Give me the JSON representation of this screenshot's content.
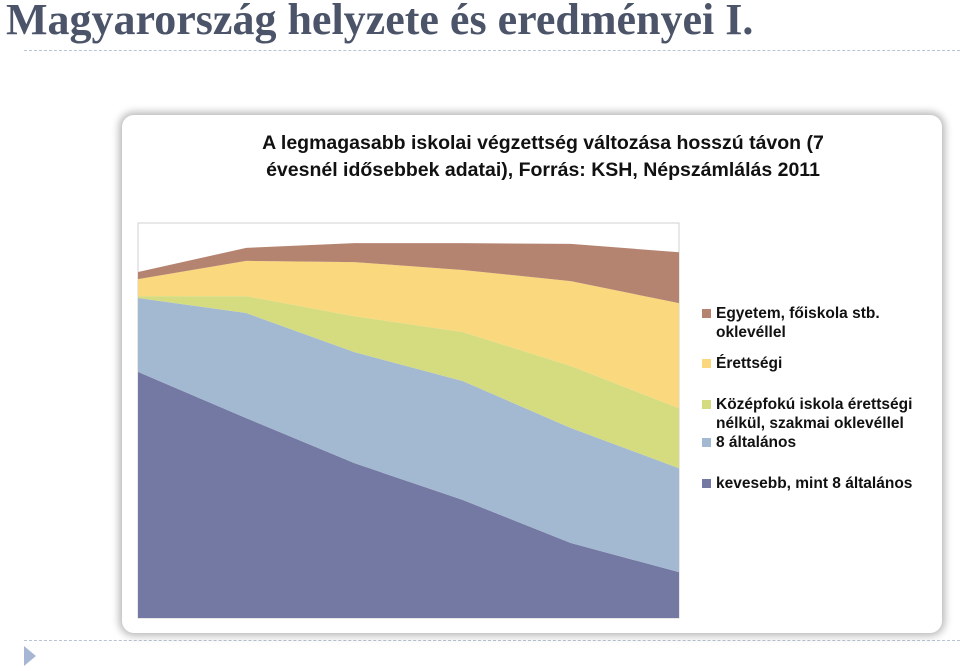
{
  "header": {
    "title": "Magyarország helyzete és eredményei I."
  },
  "chart_data": {
    "type": "stacked-area",
    "title": "A legmagasabb iskolai végzettség változása hosszú távon (7 évesnél idősebbek adatai), Forrás: KSH, Népszámlálás 2011",
    "categories": [
      null,
      null,
      null,
      null,
      null,
      null
    ],
    "ylim": [
      0,
      100
    ],
    "series": [
      {
        "name": "kevesebb, mint 8 általános",
        "color": "#7479a3",
        "values": [
          62.3,
          50.6,
          39.2,
          29.9,
          19.0,
          11.6
        ]
      },
      {
        "name": "8 általános",
        "color": "#a3b8d1",
        "values": [
          18.7,
          26.6,
          28.1,
          30.1,
          29.1,
          26.3
        ]
      },
      {
        "name": "Középfokú iskola érettségi nélkül, szakmai oklevéllel",
        "color": "#d5dc80",
        "values": [
          0.5,
          4.3,
          9.1,
          12.4,
          15.7,
          15.2
        ]
      },
      {
        "name": "Érettségi",
        "color": "#f9d87e",
        "values": [
          4.3,
          8.9,
          13.7,
          15.7,
          21.5,
          26.6
        ]
      },
      {
        "name": "Egyetem, főiskola stb. oklevéllel",
        "color": "#b58471",
        "values": [
          1.8,
          3.3,
          4.8,
          6.8,
          9.4,
          12.9
        ]
      }
    ]
  }
}
